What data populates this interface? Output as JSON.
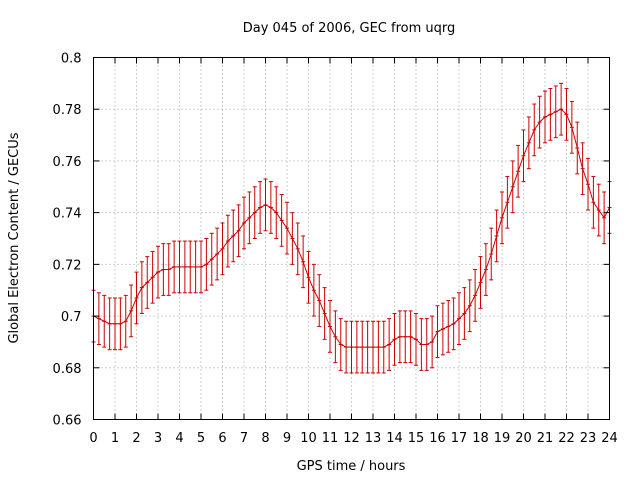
{
  "chart_data": {
    "type": "line",
    "title": "Day 045 of 2006, GEC from uqrg",
    "xlabel": "GPS time / hours",
    "ylabel": "Global Electron Content / GECUs",
    "xlim": [
      0,
      24
    ],
    "ylim": [
      0.66,
      0.8
    ],
    "xticks": [
      "0",
      "1",
      "2",
      "3",
      "4",
      "5",
      "6",
      "7",
      "8",
      "9",
      "10",
      "11",
      "12",
      "13",
      "14",
      "15",
      "16",
      "17",
      "18",
      "19",
      "20",
      "21",
      "22",
      "23",
      "24"
    ],
    "yticks": [
      "0.66",
      "0.68",
      "0.7",
      "0.72",
      "0.74",
      "0.76",
      "0.78",
      "0.8"
    ],
    "grid": true,
    "series_color": "#cc0000",
    "error_half_width": 0.01,
    "x": [
      0,
      0.25,
      0.5,
      0.75,
      1,
      1.25,
      1.5,
      1.75,
      2,
      2.25,
      2.5,
      2.75,
      3,
      3.25,
      3.5,
      3.75,
      4,
      4.25,
      4.5,
      4.75,
      5,
      5.25,
      5.5,
      5.75,
      6,
      6.25,
      6.5,
      6.75,
      7,
      7.25,
      7.5,
      7.75,
      8,
      8.25,
      8.5,
      8.75,
      9,
      9.25,
      9.5,
      9.75,
      10,
      10.25,
      10.5,
      10.75,
      11,
      11.25,
      11.5,
      11.75,
      12,
      12.25,
      12.5,
      12.75,
      13,
      13.25,
      13.5,
      13.75,
      14,
      14.25,
      14.5,
      14.75,
      15,
      15.25,
      15.5,
      15.75,
      16,
      16.25,
      16.5,
      16.75,
      17,
      17.25,
      17.5,
      17.75,
      18,
      18.25,
      18.5,
      18.75,
      19,
      19.25,
      19.5,
      19.75,
      20,
      20.25,
      20.5,
      20.75,
      21,
      21.25,
      21.5,
      21.75,
      22,
      22.25,
      22.5,
      22.75,
      23,
      23.25,
      23.5,
      23.75,
      24
    ],
    "y": [
      0.7,
      0.699,
      0.698,
      0.697,
      0.697,
      0.697,
      0.698,
      0.702,
      0.707,
      0.711,
      0.713,
      0.715,
      0.717,
      0.718,
      0.718,
      0.719,
      0.719,
      0.719,
      0.719,
      0.719,
      0.719,
      0.72,
      0.722,
      0.724,
      0.726,
      0.729,
      0.731,
      0.733,
      0.736,
      0.738,
      0.74,
      0.742,
      0.743,
      0.742,
      0.74,
      0.737,
      0.734,
      0.73,
      0.726,
      0.721,
      0.715,
      0.71,
      0.706,
      0.701,
      0.696,
      0.692,
      0.689,
      0.688,
      0.688,
      0.688,
      0.688,
      0.688,
      0.688,
      0.688,
      0.688,
      0.689,
      0.691,
      0.692,
      0.692,
      0.692,
      0.691,
      0.689,
      0.689,
      0.69,
      0.694,
      0.695,
      0.696,
      0.697,
      0.699,
      0.701,
      0.704,
      0.708,
      0.713,
      0.718,
      0.724,
      0.731,
      0.738,
      0.744,
      0.75,
      0.756,
      0.762,
      0.767,
      0.772,
      0.775,
      0.777,
      0.778,
      0.779,
      0.78,
      0.778,
      0.773,
      0.765,
      0.757,
      0.751,
      0.744,
      0.741,
      0.738,
      0.742
    ]
  }
}
